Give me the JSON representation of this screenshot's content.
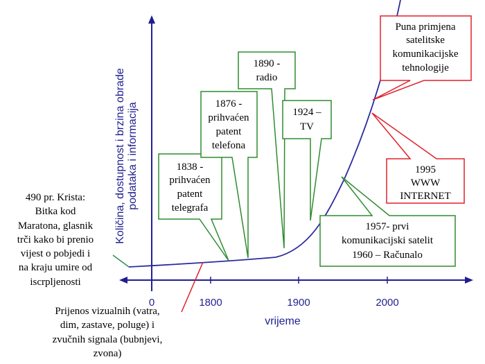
{
  "colors": {
    "axis": "#1f1f8f",
    "curve": "#2a2a9e",
    "green": "#2e8b2e",
    "red": "#e0202a",
    "connector": "#2e8b57"
  },
  "axes": {
    "y_label_line1": "Količina, dostupnost i brzina obrade",
    "y_label_line2": "podataka i informacija",
    "x_label": "vrijeme",
    "x_ticks": [
      "0",
      "1800",
      "1900",
      "2000"
    ]
  },
  "notes": {
    "left_l1": "490 pr. Krista:",
    "left_l2": "Bitka kod",
    "left_l3": "Maratona, glasnik",
    "left_l4": "trči kako bi prenio",
    "left_l5": "vijest o pobjedi i",
    "left_l6": "na kraju umire od",
    "left_l7": "iscrpljenosti",
    "bottom_l1": "Prijenos vizualnih (vatra,",
    "bottom_l2": "dim, zastave, poluge) i",
    "bottom_l3": "zvučnih signala (bubnjevi,",
    "bottom_l4": "zvona)"
  },
  "callouts": {
    "telegraph_l1": "1838 -",
    "telegraph_l2": "prihvaćen",
    "telegraph_l3": "patent",
    "telegraph_l4": "telegrafa",
    "telephone_l1": "1876 -",
    "telephone_l2": "prihvaćen",
    "telephone_l3": "patent",
    "telephone_l4": "telefona",
    "radio_l1": "1890 -",
    "radio_l2": "radio",
    "tv_l1": "1924 –",
    "tv_l2": "TV",
    "satellite_l1": "1957- prvi",
    "satellite_l2": "komunikacijski satelit",
    "satellite_l3": "1960 – Računalo",
    "internet_l1": "1995",
    "internet_l2": "WWW",
    "internet_l3": "INTERNET",
    "satellite_full_l1": "Puna primjena",
    "satellite_full_l2": "satelitske",
    "satellite_full_l3": "komunikacijske",
    "satellite_full_l4": "tehnologije"
  }
}
